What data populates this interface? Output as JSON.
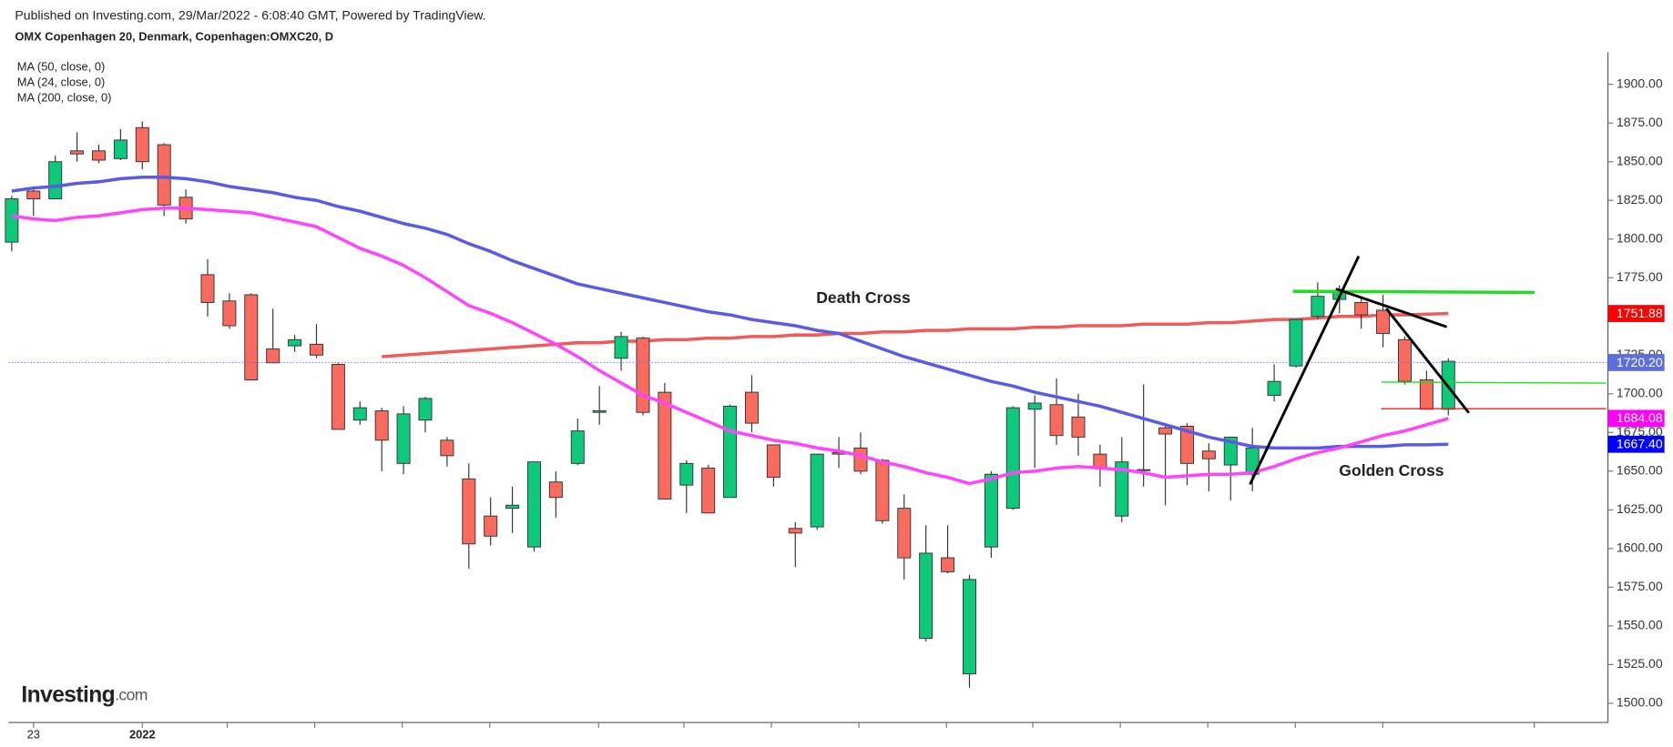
{
  "chart_data": {
    "type": "candlestick",
    "published": "Published on Investing.com, 29/Mar/2022 - 6:08:40 GMT, Powered by TradingView.",
    "title": "OMX Copenhagen 20, Denmark, Copenhagen:OMXC20, D",
    "logo": {
      "name": "Investing",
      "suffix": ".com"
    },
    "annotations": [
      "Death Cross",
      "Golden Cross"
    ],
    "categories": [
      null,
      "23",
      null,
      null,
      null,
      null,
      "2022",
      null,
      null,
      null,
      null,
      null,
      null,
      null,
      null,
      null,
      null,
      null,
      null,
      null,
      null,
      null,
      null,
      null,
      null,
      null,
      null,
      null,
      null,
      null,
      null,
      null,
      null,
      null,
      null,
      null,
      null,
      null,
      null,
      null,
      null,
      null,
      null,
      null,
      null,
      null,
      null,
      null,
      null,
      null,
      null,
      null,
      null,
      null,
      null,
      null,
      null,
      null,
      null,
      null,
      null,
      null,
      null,
      null,
      null,
      null,
      null
    ],
    "open": [
      1798,
      1831,
      1826,
      1857,
      1857,
      1852,
      1872,
      1861,
      1827,
      1777,
      1760,
      1764,
      1729,
      1731,
      1732,
      1719,
      1683,
      1689,
      1655,
      1683,
      1670,
      1645,
      1621,
      1626,
      1601,
      1643,
      1655,
      1688,
      1723,
      1736,
      1701,
      1641,
      1652,
      1633,
      1701,
      1667,
      1613,
      1614,
      1662,
      1665,
      1657,
      1626,
      1542,
      1594,
      1519,
      1601,
      1626,
      1690,
      1693,
      1685,
      1661,
      1621,
      1651,
      1678,
      1679,
      1663,
      1654,
      1648,
      1699,
      1718,
      1750,
      1761,
      1759,
      1754,
      1735,
      1709,
      1690
    ],
    "high": [
      1828,
      1834,
      1854,
      1869,
      1861,
      1871,
      1876,
      1862,
      1832,
      1787,
      1765,
      1765,
      1755,
      1738,
      1745,
      1720,
      1695,
      1691,
      1692,
      1698,
      1672,
      1655,
      1633,
      1640,
      1656,
      1650,
      1684,
      1705,
      1740,
      1737,
      1707,
      1657,
      1654,
      1693,
      1712,
      1667,
      1617,
      1661,
      1672,
      1675,
      1658,
      1635,
      1615,
      1615,
      1583,
      1650,
      1692,
      1699,
      1710,
      1700,
      1667,
      1672,
      1706,
      1681,
      1681,
      1668,
      1672,
      1678,
      1719,
      1748,
      1772,
      1770,
      1762,
      1764,
      1737,
      1715,
      1723
    ],
    "low": [
      1792,
      1815,
      1826,
      1850,
      1849,
      1851,
      1845,
      1815,
      1810,
      1750,
      1742,
      1709,
      1720,
      1727,
      1723,
      1677,
      1680,
      1650,
      1648,
      1675,
      1653,
      1587,
      1602,
      1610,
      1598,
      1620,
      1654,
      1680,
      1715,
      1686,
      1632,
      1623,
      1623,
      1633,
      1675,
      1640,
      1588,
      1612,
      1652,
      1648,
      1616,
      1580,
      1540,
      1584,
      1510,
      1594,
      1625,
      1652,
      1667,
      1660,
      1640,
      1617,
      1640,
      1628,
      1641,
      1637,
      1631,
      1637,
      1695,
      1717,
      1748,
      1752,
      1742,
      1730,
      1706,
      1690,
      1686
    ],
    "close": [
      1826,
      1826,
      1850,
      1855,
      1851,
      1864,
      1850,
      1822,
      1813,
      1759,
      1744,
      1709,
      1720,
      1735,
      1725,
      1677,
      1691,
      1670,
      1687,
      1697,
      1660,
      1603,
      1608,
      1628,
      1656,
      1633,
      1676,
      1689,
      1737,
      1688,
      1632,
      1655,
      1623,
      1692,
      1681,
      1646,
      1610,
      1661,
      1661,
      1650,
      1618,
      1594,
      1597,
      1585,
      1580,
      1648,
      1691,
      1694,
      1673,
      1672,
      1652,
      1656,
      1651,
      1674,
      1655,
      1658,
      1672,
      1665,
      1708,
      1748,
      1763,
      1766,
      1751,
      1739,
      1708,
      1690,
      1721
    ],
    "up_color": "#0ec97a",
    "down_color": "#f86b5e",
    "series": [
      {
        "name": "MA (50, close, 0)",
        "color": "#5a5ae6",
        "values": [
          1831,
          1833,
          1834,
          1836,
          1837,
          1839,
          1840,
          1840,
          1839,
          1837,
          1834,
          1832,
          1830,
          1827,
          1825,
          1821,
          1818,
          1814,
          1810,
          1807,
          1803,
          1797,
          1792,
          1786,
          1781,
          1776,
          1771,
          1768,
          1765,
          1762,
          1759,
          1756,
          1753,
          1751,
          1748,
          1746,
          1744,
          1741,
          1739,
          1734,
          1729,
          1724,
          1720,
          1716,
          1712,
          1708,
          1705,
          1701,
          1698,
          1695,
          1692,
          1688,
          1684,
          1680,
          1676,
          1672,
          1669,
          1666,
          1665,
          1665,
          1665,
          1666,
          1666,
          1666,
          1667,
          1667,
          1667.4
        ]
      },
      {
        "name": "MA (24, close, 0)",
        "color": "#ff44ff",
        "values": [
          1815,
          1813,
          1812,
          1814,
          1815,
          1817,
          1819,
          1820,
          1820,
          1819,
          1818,
          1817,
          1814,
          1811,
          1808,
          1801,
          1794,
          1789,
          1783,
          1775,
          1766,
          1757,
          1752,
          1746,
          1739,
          1732,
          1724,
          1715,
          1707,
          1699,
          1694,
          1688,
          1682,
          1676,
          1673,
          1670,
          1668,
          1665,
          1663,
          1660,
          1656,
          1653,
          1649,
          1646,
          1642,
          1645,
          1649,
          1650,
          1652,
          1653,
          1652,
          1651,
          1649,
          1646,
          1647,
          1648,
          1648,
          1649,
          1653,
          1658,
          1662,
          1665,
          1669,
          1673,
          1676,
          1680,
          1684.08
        ]
      },
      {
        "name": "MA (200, close, 0)",
        "color": "#f25a5a",
        "values": [
          null,
          null,
          null,
          null,
          null,
          null,
          null,
          null,
          null,
          null,
          null,
          null,
          null,
          null,
          null,
          null,
          null,
          1724,
          1725,
          1726,
          1727,
          1728,
          1729,
          1730,
          1731,
          1732,
          1733,
          1733,
          1734,
          1734,
          1735,
          1735,
          1736,
          1736,
          1737,
          1737,
          1738,
          1738,
          1739,
          1739,
          1740,
          1740,
          1741,
          1741,
          1742,
          1742,
          1742,
          1743,
          1743,
          1744,
          1744,
          1744,
          1745,
          1745,
          1745,
          1746,
          1746,
          1747,
          1748,
          1748,
          1749,
          1750,
          1750,
          1751,
          1751,
          1751.5,
          1751.88
        ]
      }
    ],
    "price_labels": [
      {
        "value": 1751.88,
        "color": "#ff0000"
      },
      {
        "value": {
          "value": 1720.2,
          "label": "1720.20"
        },
        "color": "#5b6fe0"
      },
      {
        "value": 1684.08,
        "color": "#ff00ff"
      },
      {
        "value": {
          "value": 1667.4,
          "label": "1667.40"
        },
        "color": "#0000ff"
      }
    ],
    "ylim": [
      1487.6,
      1920.7
    ],
    "yticks": [
      {
        "value": 1500,
        "label": "1500.00"
      },
      {
        "value": 1525,
        "label": "1525.00"
      },
      {
        "value": 1550,
        "label": "1550.00"
      },
      {
        "value": 1575,
        "label": "1575.00"
      },
      {
        "value": 1600,
        "label": "1600.00"
      },
      {
        "value": 1625,
        "label": "1625.00"
      },
      {
        "value": 1650,
        "label": "1650.00"
      },
      {
        "value": 1675,
        "label": "1675.00"
      },
      {
        "value": 1700,
        "label": "1700.00"
      },
      {
        "value": 1725,
        "label": "1725.00"
      },
      {
        "value": 1750,
        "label": "1750.00"
      },
      {
        "value": 1775,
        "label": "1775.00"
      },
      {
        "value": 1800,
        "label": "1800.00"
      },
      {
        "value": 1825,
        "label": "1825.00"
      },
      {
        "value": 1850,
        "label": "1850.00"
      },
      {
        "value": 1875,
        "label": "1875.00"
      },
      {
        "value": 1900,
        "label": "1900.00"
      }
    ],
    "grid": false
  }
}
